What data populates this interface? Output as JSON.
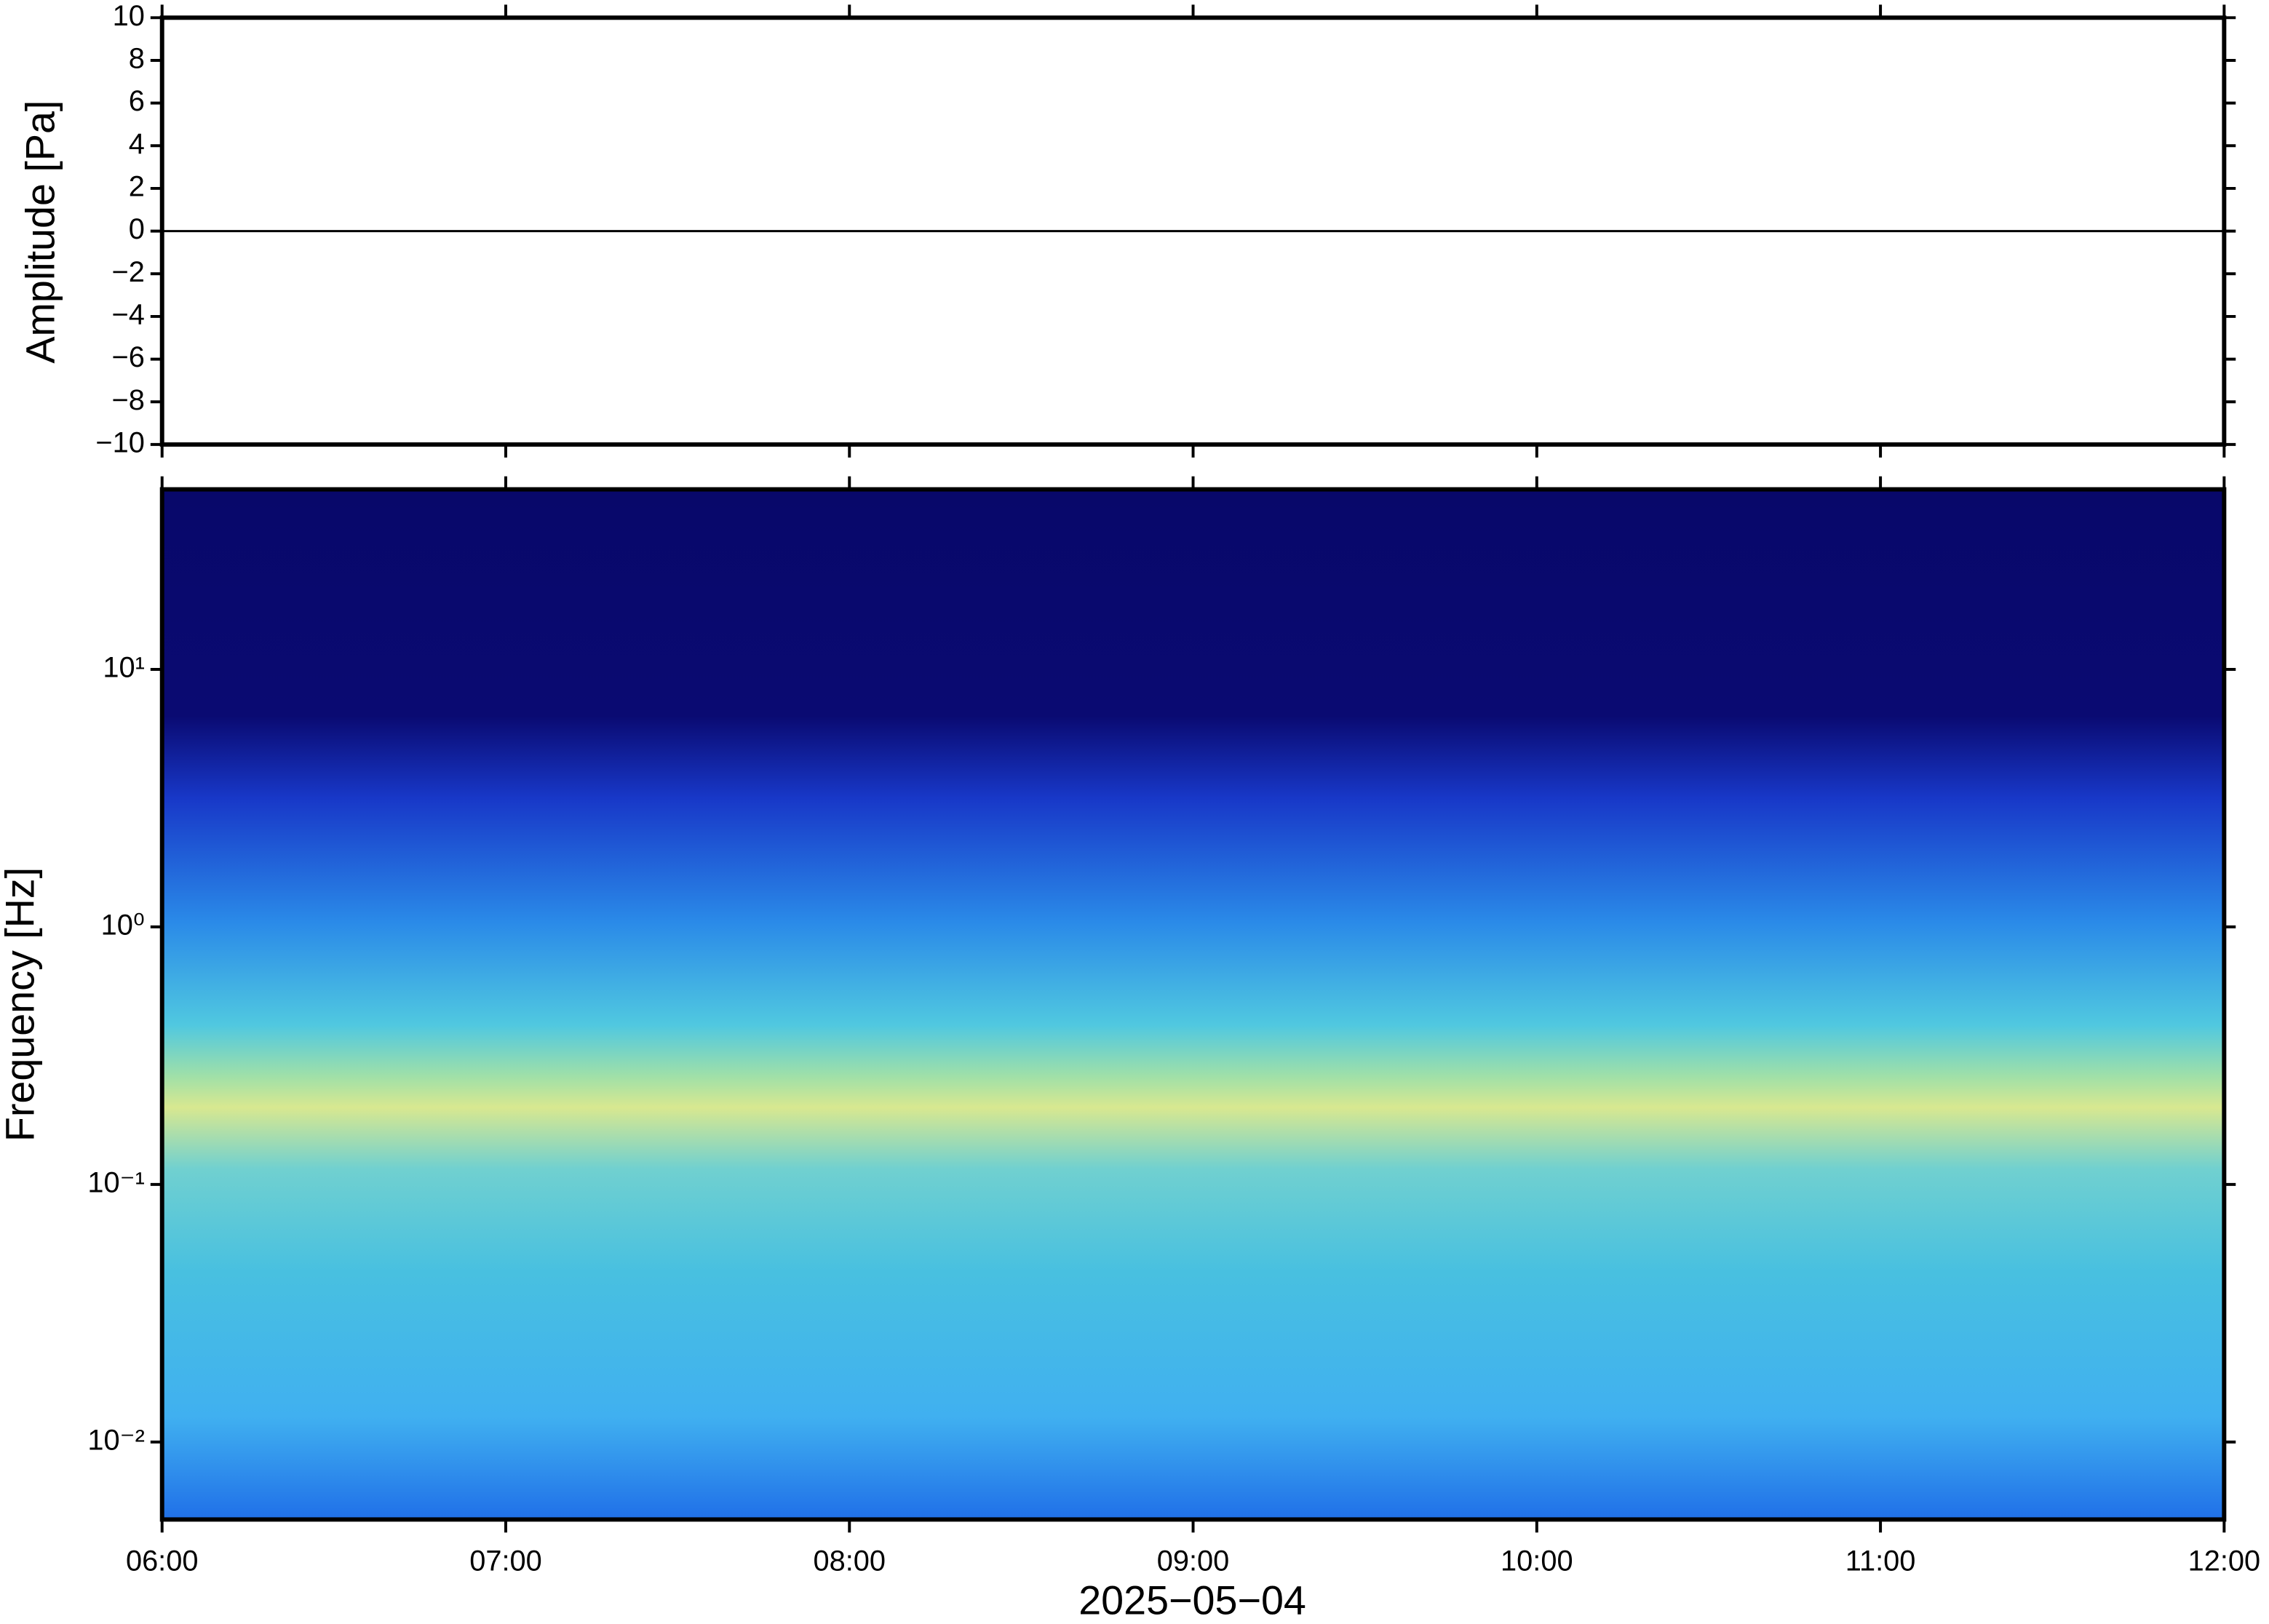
{
  "chart_data": [
    {
      "type": "line",
      "ylabel": "Amplitude [Pa]",
      "xlim": [
        6,
        12
      ],
      "x": [
        6,
        7,
        8,
        9,
        10,
        11,
        12
      ],
      "series": [
        {
          "color": "#000000",
          "values": [
            0,
            0,
            0,
            0,
            0,
            0,
            0
          ]
        }
      ],
      "ylim": [
        -10,
        10
      ],
      "yticks": [
        {
          "value": -10,
          "label": "−10"
        },
        {
          "value": -8,
          "label": "−8"
        },
        {
          "value": -6,
          "label": "−6"
        },
        {
          "value": -4,
          "label": "−4"
        },
        {
          "value": -2,
          "label": "−2"
        },
        0,
        2,
        4,
        6,
        8,
        10
      ]
    },
    {
      "type": "spectrogram",
      "ylabel": "Frequency [Hz]",
      "xlabel": "2025−05−04",
      "ylog": true,
      "xlim": [
        6,
        12
      ],
      "xticks": [
        {
          "value": 6,
          "label": "06:00"
        },
        {
          "value": 7,
          "label": "07:00"
        },
        {
          "value": 8,
          "label": "08:00"
        },
        {
          "value": 9,
          "label": "09:00"
        },
        {
          "value": 10,
          "label": "10:00"
        },
        {
          "value": 11,
          "label": "11:00"
        },
        {
          "value": 12,
          "label": "12:00"
        }
      ],
      "ylim": [
        0.005,
        50
      ],
      "yticks": [
        {
          "value": 0.01,
          "label": "10⁻²"
        },
        {
          "value": 0.1,
          "label": "10⁻¹"
        },
        {
          "value": 1,
          "label": "10⁰"
        },
        {
          "value": 10,
          "label": "10¹"
        }
      ]
    }
  ]
}
